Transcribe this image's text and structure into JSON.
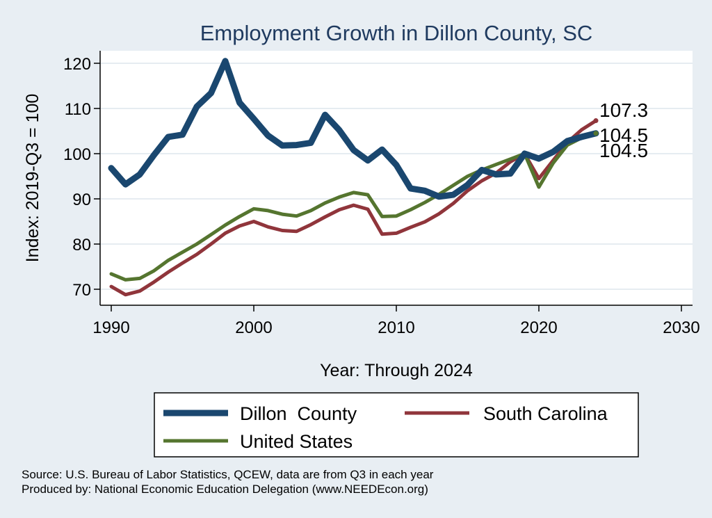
{
  "chart_data": {
    "type": "line",
    "title": "Employment Growth in Dillon County, SC",
    "xlabel": "Year: Through 2024",
    "ylabel": "Index: 2019-Q3 = 100",
    "xlim": [
      1990,
      2030
    ],
    "ylim": [
      66,
      124
    ],
    "xticks": [
      1990,
      2000,
      2010,
      2020,
      2030
    ],
    "yticks": [
      70,
      80,
      90,
      100,
      110,
      120
    ],
    "grid": true,
    "legend_position": "bottom",
    "x": [
      1990,
      1991,
      1992,
      1993,
      1994,
      1995,
      1996,
      1997,
      1998,
      1999,
      2000,
      2001,
      2002,
      2003,
      2004,
      2005,
      2006,
      2007,
      2008,
      2009,
      2010,
      2011,
      2012,
      2013,
      2014,
      2015,
      2016,
      2017,
      2018,
      2019,
      2020,
      2021,
      2022,
      2023,
      2024
    ],
    "series": [
      {
        "name": "Dillon  County",
        "color": "#1a476f",
        "values": [
          96.8,
          93.2,
          95.4,
          99.7,
          103.7,
          104.2,
          110.4,
          113.4,
          120.5,
          111.3,
          107.7,
          104.0,
          101.8,
          101.9,
          102.4,
          108.6,
          105.2,
          100.8,
          98.5,
          100.9,
          97.5,
          92.3,
          91.8,
          90.5,
          90.9,
          93.1,
          96.4,
          95.4,
          95.6,
          100.0,
          98.9,
          100.4,
          102.8,
          103.7,
          104.5
        ],
        "end_label": "104.5"
      },
      {
        "name": "South Carolina",
        "color": "#90353b",
        "values": [
          70.6,
          68.8,
          69.6,
          71.6,
          73.8,
          75.8,
          77.7,
          80.0,
          82.4,
          84.0,
          85.0,
          83.8,
          83.0,
          82.8,
          84.3,
          86.0,
          87.6,
          88.6,
          87.7,
          82.2,
          82.4,
          83.7,
          84.9,
          86.7,
          89.0,
          91.8,
          94.0,
          95.7,
          98.2,
          100.0,
          94.5,
          98.5,
          102.5,
          105.3,
          107.3
        ],
        "end_label": "107.3"
      },
      {
        "name": "United States",
        "color": "#55752f",
        "values": [
          73.4,
          72.1,
          72.4,
          74.1,
          76.4,
          78.2,
          80.0,
          82.1,
          84.2,
          86.1,
          87.8,
          87.4,
          86.6,
          86.2,
          87.4,
          89.1,
          90.4,
          91.4,
          90.9,
          86.1,
          86.2,
          87.6,
          89.2,
          91.0,
          93.0,
          95.0,
          96.4,
          97.6,
          98.8,
          100.0,
          92.6,
          97.9,
          101.9,
          103.5,
          104.5
        ],
        "end_label": "104.5"
      }
    ]
  },
  "legend": {
    "items": [
      "Dillon  County",
      "South Carolina",
      "United States"
    ]
  },
  "footer": {
    "source": "Source: U.S. Bureau of Labor Statistics, QCEW, data are from Q3 in each year",
    "produced_by": "Produced by: National Economic Education Delegation (www.NEEDEcon.org)"
  }
}
